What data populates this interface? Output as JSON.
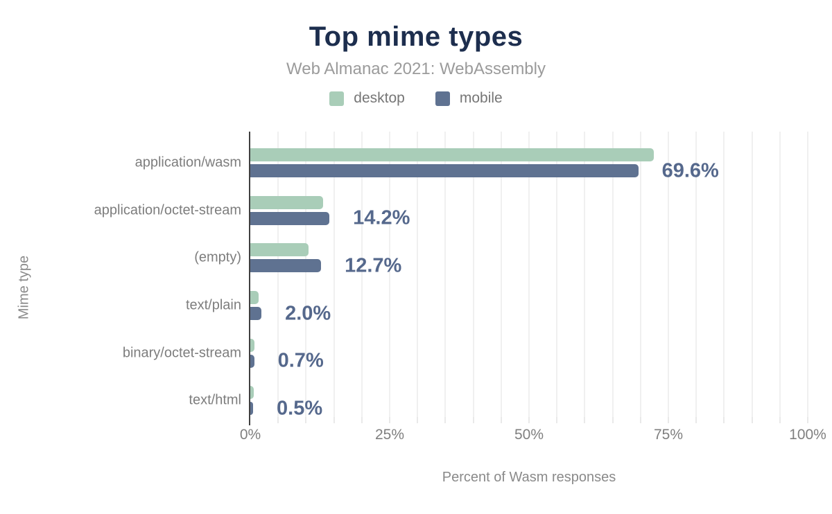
{
  "header": {
    "title": "Top mime types",
    "subtitle": "Web Almanac 2021: WebAssembly"
  },
  "legend": {
    "items": [
      {
        "label": "desktop",
        "color": "#a9cdb8"
      },
      {
        "label": "mobile",
        "color": "#5f7291"
      }
    ]
  },
  "axes": {
    "x_title": "Percent of Wasm responses",
    "y_title": "Mime type"
  },
  "chart_data": {
    "type": "bar",
    "orientation": "horizontal",
    "title": "Top mime types",
    "subtitle": "Web Almanac 2021: WebAssembly",
    "xlabel": "Percent of Wasm responses",
    "ylabel": "Mime type",
    "xlim": [
      0,
      100
    ],
    "grid": true,
    "gridline_step_percent": 5,
    "legend_position": "top-center",
    "x_ticks": [
      {
        "value": 0,
        "label": "0%"
      },
      {
        "value": 25,
        "label": "25%"
      },
      {
        "value": 50,
        "label": "50%"
      },
      {
        "value": 75,
        "label": "75%"
      },
      {
        "value": 100,
        "label": "100%"
      }
    ],
    "categories": [
      "application/wasm",
      "application/octet-stream",
      "(empty)",
      "text/plain",
      "binary/octet-stream",
      "text/html"
    ],
    "series": [
      {
        "name": "desktop",
        "color": "#a9cdb8",
        "values": [
          72.4,
          13.1,
          10.5,
          1.5,
          0.8,
          0.6
        ]
      },
      {
        "name": "mobile",
        "color": "#5f7291",
        "values": [
          69.6,
          14.2,
          12.7,
          2.0,
          0.7,
          0.5
        ]
      }
    ],
    "data_labels": {
      "labeled_series": "mobile",
      "texts": [
        "69.6%",
        "14.2%",
        "12.7%",
        "2.0%",
        "0.7%",
        "0.5%"
      ],
      "color": "#55688c"
    }
  },
  "colors": {
    "background": "#ffffff",
    "title": "#1d2e4e",
    "subtitle": "#9b9b9b",
    "legend_text": "#767676",
    "category_label": "#7d7d7d",
    "tick_label": "#7f7f7f",
    "axis_title": "#8a8a8a",
    "gridline": "#f0f0f0",
    "tick_stub": "#e9e9e9",
    "axis_line": "#3f3f3f",
    "value_label": "#55688c"
  }
}
